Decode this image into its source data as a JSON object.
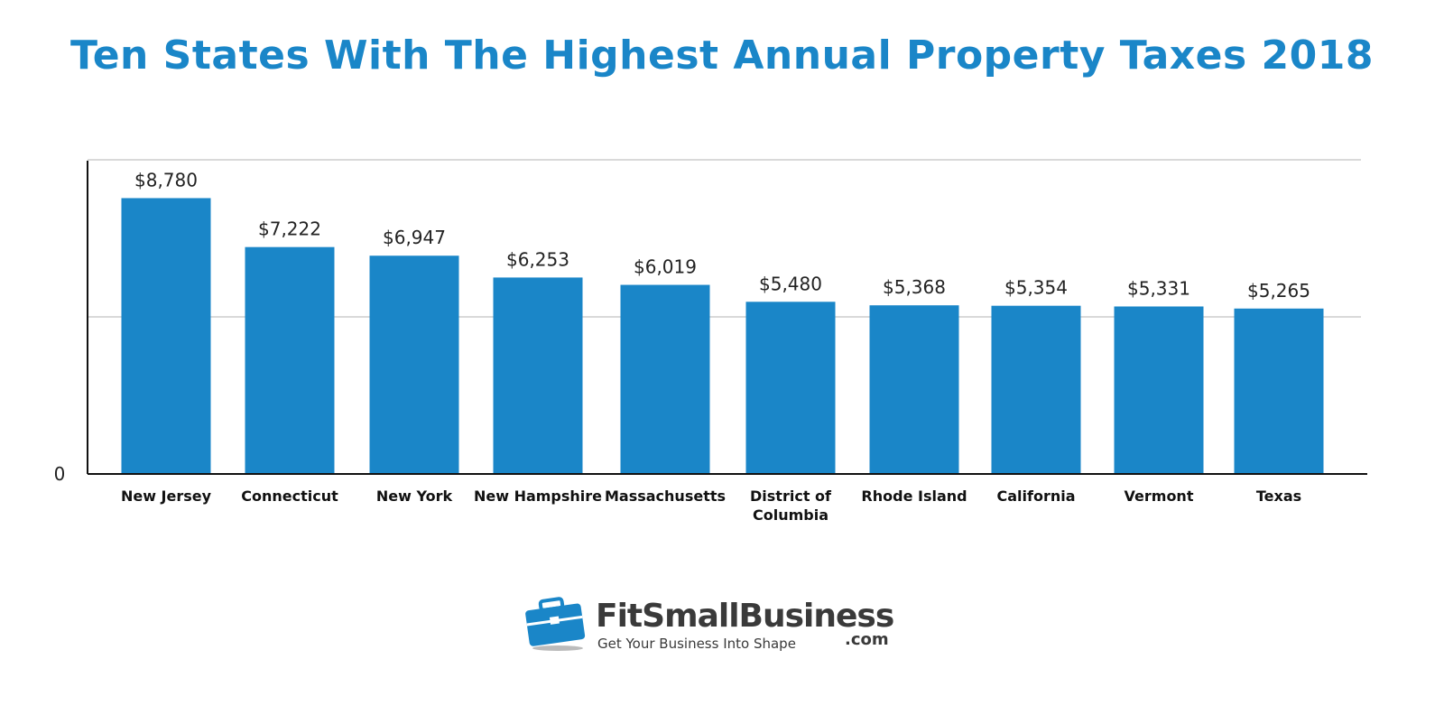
{
  "chart_data": {
    "type": "bar",
    "title": "Ten States With The Highest Annual Property Taxes 2018",
    "categories": [
      "New Jersey",
      "Connecticut",
      "New York",
      "New Hampshire",
      "Massachusetts",
      "District of Columbia",
      "Rhode Island",
      "California",
      "Vermont",
      "Texas"
    ],
    "category_lines": [
      [
        "New Jersey"
      ],
      [
        "Connecticut"
      ],
      [
        "New York"
      ],
      [
        "New Hampshire"
      ],
      [
        "Massachusetts"
      ],
      [
        "District of",
        "Columbia"
      ],
      [
        "Rhode Island"
      ],
      [
        "California"
      ],
      [
        "Vermont"
      ],
      [
        "Texas"
      ]
    ],
    "values": [
      8780,
      7222,
      6947,
      6253,
      6019,
      5480,
      5368,
      5354,
      5331,
      5265
    ],
    "value_labels": [
      "$8,780",
      "$7,222",
      "$6,947",
      "$6,253",
      "$6,019",
      "$5,480",
      "$5,368",
      "$5,354",
      "$5,331",
      "$5,265"
    ],
    "y_tick_labels": [
      "0"
    ],
    "ylim": [
      0,
      10000
    ],
    "gridlines": [
      5000,
      10000
    ],
    "grid": true,
    "legend": "none",
    "colors": {
      "bar": "#1a86c8",
      "title": "#1a86c8",
      "axis": "#111111",
      "grid": "#d9d9d9"
    }
  },
  "logo": {
    "wordmark": "FitSmallBusiness",
    "dotcom": ".com",
    "tagline": "Get Your Business Into Shape",
    "icon": "briefcase-icon"
  }
}
